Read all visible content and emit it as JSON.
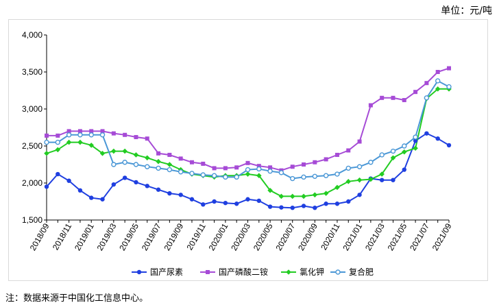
{
  "unit_label": "单位：元/吨",
  "note": "注：数据来源于中国化工信息中心。",
  "chart_data": {
    "type": "line",
    "title": "",
    "xlabel": "",
    "ylabel": "",
    "ylim": [
      1500,
      4000
    ],
    "yticks": [
      "1,500",
      "2,000",
      "2,500",
      "3,000",
      "3,500",
      "4,000"
    ],
    "ytick_values": [
      1500,
      2000,
      2500,
      3000,
      3500,
      4000
    ],
    "x": [
      "2018/09",
      "2018/10",
      "2018/11",
      "2018/12",
      "2019/01",
      "2019/02",
      "2019/03",
      "2019/04",
      "2019/05",
      "2019/06",
      "2019/07",
      "2019/08",
      "2019/09",
      "2019/10",
      "2019/11",
      "2019/12",
      "2020/01",
      "2020/02",
      "2020/03",
      "2020/04",
      "2020/05",
      "2020/06",
      "2020/07",
      "2020/08",
      "2020/09",
      "2020/10",
      "2020/11",
      "2020/12",
      "2021/01",
      "2021/02",
      "2021/03",
      "2021/04",
      "2021/05",
      "2021/06",
      "2021/07",
      "2021/08",
      "2021/09"
    ],
    "xtick_labels": [
      "2018/09",
      "2018/11",
      "2019/01",
      "2019/03",
      "2019/05",
      "2019/07",
      "2019/09",
      "2019/11",
      "2020/01",
      "2020/03",
      "2020/05",
      "2020/07",
      "2020/09",
      "2020/11",
      "2021/01",
      "2021/03",
      "2021/05",
      "2021/07",
      "2021/09"
    ],
    "legend_position": "bottom",
    "grid": false,
    "series": [
      {
        "name": "国产尿素",
        "color": "#1f3fe0",
        "marker": "circle",
        "values": [
          1950,
          2120,
          2030,
          1900,
          1800,
          1780,
          1980,
          2070,
          2010,
          1960,
          1910,
          1860,
          1840,
          1780,
          1710,
          1750,
          1730,
          1720,
          1780,
          1760,
          1680,
          1670,
          1665,
          1690,
          1665,
          1720,
          1720,
          1750,
          1840,
          2060,
          2040,
          2040,
          2180,
          2570,
          2670,
          2600,
          2510
        ]
      },
      {
        "name": "国产磷酸二铵",
        "color": "#a64bd6",
        "marker": "square",
        "values": [
          2640,
          2640,
          2700,
          2700,
          2700,
          2700,
          2670,
          2650,
          2620,
          2600,
          2400,
          2380,
          2330,
          2280,
          2260,
          2200,
          2200,
          2210,
          2270,
          2230,
          2210,
          2170,
          2220,
          2250,
          2280,
          2320,
          2380,
          2440,
          2560,
          3050,
          3150,
          3150,
          3120,
          3230,
          3350,
          3500,
          3550
        ]
      },
      {
        "name": "氯化钾",
        "color": "#22cc22",
        "marker": "diamond",
        "values": [
          2400,
          2450,
          2550,
          2550,
          2510,
          2400,
          2430,
          2430,
          2380,
          2340,
          2290,
          2250,
          2180,
          2120,
          2100,
          2080,
          2100,
          2100,
          2120,
          2100,
          1900,
          1820,
          1820,
          1820,
          1840,
          1860,
          1940,
          2020,
          2040,
          2050,
          2120,
          2340,
          2420,
          2470,
          3140,
          3270,
          3270
        ]
      },
      {
        "name": "复合肥",
        "color": "#4a97d6",
        "marker": "open-circle",
        "values": [
          2550,
          2550,
          2650,
          2650,
          2650,
          2650,
          2250,
          2280,
          2250,
          2220,
          2200,
          2180,
          2150,
          2130,
          2110,
          2100,
          2080,
          2080,
          2180,
          2190,
          2160,
          2140,
          2060,
          2080,
          2090,
          2100,
          2120,
          2200,
          2220,
          2280,
          2380,
          2430,
          2500,
          2620,
          3150,
          3380,
          3300
        ]
      }
    ]
  }
}
